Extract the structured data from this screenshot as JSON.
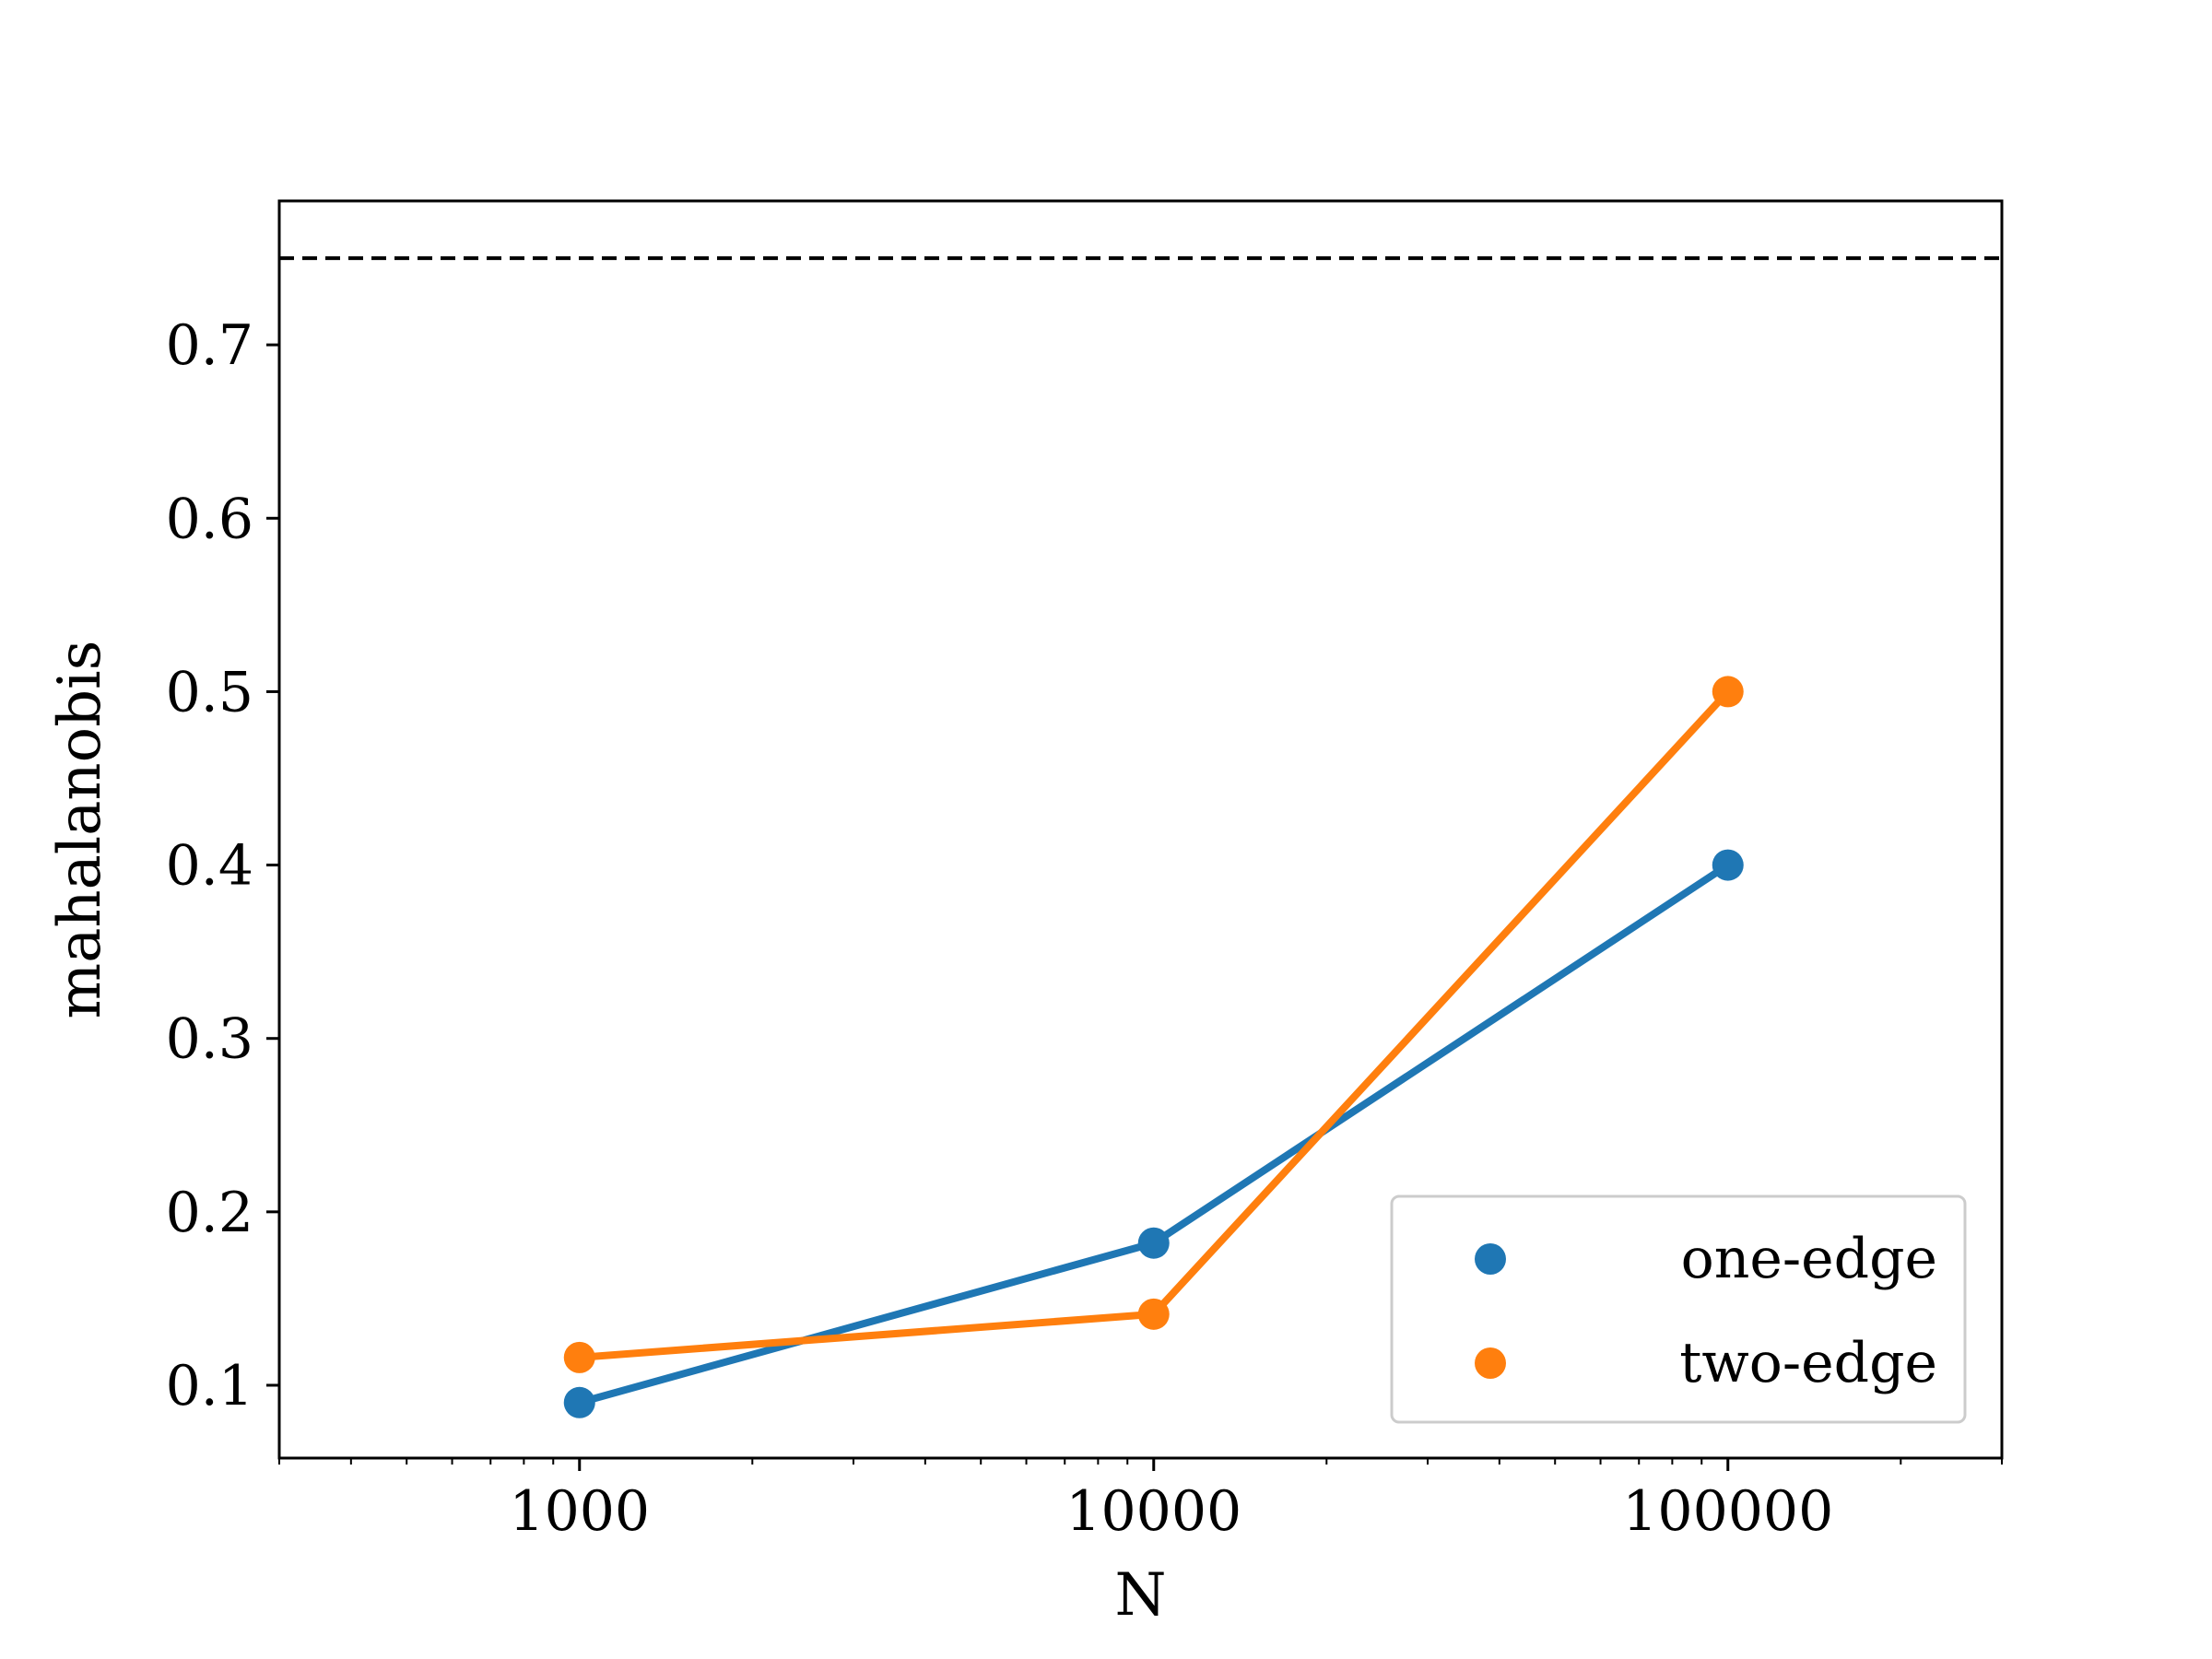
{
  "chart_data": {
    "type": "line",
    "title": "",
    "xlabel": "N",
    "ylabel": "mahalanobis",
    "xscale": "log",
    "x": [
      1000,
      10000,
      100000
    ],
    "xticks": [
      1000,
      10000,
      100000
    ],
    "xtick_labels": [
      "1000",
      "10000",
      "100000"
    ],
    "xlim": [
      300,
      300000
    ],
    "yticks": [
      0.1,
      0.2,
      0.3,
      0.4,
      0.5,
      0.6,
      0.7
    ],
    "ytick_labels": [
      "0.1",
      "0.2",
      "0.3",
      "0.4",
      "0.5",
      "0.6",
      "0.7"
    ],
    "ylim": [
      0.058,
      0.783
    ],
    "grid": false,
    "legend_position": "lower-right",
    "series": [
      {
        "name": "one-edge",
        "color": "#1f77b4",
        "values": [
          0.09,
          0.182,
          0.4
        ]
      },
      {
        "name": "two-edge",
        "color": "#ff7f0e",
        "values": [
          0.116,
          0.141,
          0.5
        ]
      }
    ],
    "reference_line": {
      "y": 0.75,
      "style": "dashed",
      "color": "#000000"
    }
  }
}
